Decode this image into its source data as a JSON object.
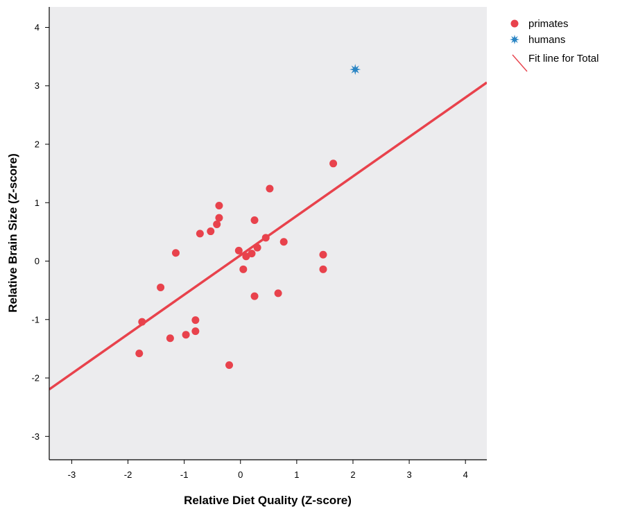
{
  "chart_data": {
    "type": "scatter",
    "title": "",
    "xlabel": "Relative Diet Quality (Z-score)",
    "ylabel": "Relative Brain Size (Z-score)",
    "xlim": [
      -3.4,
      4.38
    ],
    "ylim": [
      -3.4,
      4.35
    ],
    "xticks": [
      -3,
      -2,
      -1,
      0,
      1,
      2,
      3,
      4
    ],
    "yticks": [
      -3,
      -2,
      -1,
      0,
      1,
      2,
      3,
      4
    ],
    "grid": false,
    "plot_background": "#ececee",
    "legend_position": "right-top",
    "series": [
      {
        "name": "primates",
        "marker": "circle",
        "color": "#e8424c",
        "points": [
          [
            -1.8,
            -1.58
          ],
          [
            -1.75,
            -1.04
          ],
          [
            -1.42,
            -0.45
          ],
          [
            -1.25,
            -1.32
          ],
          [
            -1.15,
            0.14
          ],
          [
            -0.97,
            -1.26
          ],
          [
            -0.8,
            -1.2
          ],
          [
            -0.8,
            -1.01
          ],
          [
            -0.72,
            0.47
          ],
          [
            -0.53,
            0.51
          ],
          [
            -0.42,
            0.63
          ],
          [
            -0.38,
            0.74
          ],
          [
            -0.38,
            0.95
          ],
          [
            -0.2,
            -1.78
          ],
          [
            -0.03,
            0.18
          ],
          [
            0.05,
            -0.14
          ],
          [
            0.1,
            0.08
          ],
          [
            0.2,
            0.13
          ],
          [
            0.25,
            0.7
          ],
          [
            0.25,
            -0.6
          ],
          [
            0.3,
            0.23
          ],
          [
            0.45,
            0.4
          ],
          [
            0.52,
            1.24
          ],
          [
            0.67,
            -0.55
          ],
          [
            0.77,
            0.33
          ],
          [
            1.47,
            0.11
          ],
          [
            1.47,
            -0.14
          ],
          [
            1.65,
            1.67
          ]
        ]
      },
      {
        "name": "humans",
        "marker": "star",
        "color": "#2a85c4",
        "points": [
          [
            2.04,
            3.28
          ]
        ]
      }
    ],
    "fit_line": {
      "name": "Fit line for Total",
      "color": "#e8424c",
      "slope": 0.675,
      "intercept": 0.1
    }
  }
}
